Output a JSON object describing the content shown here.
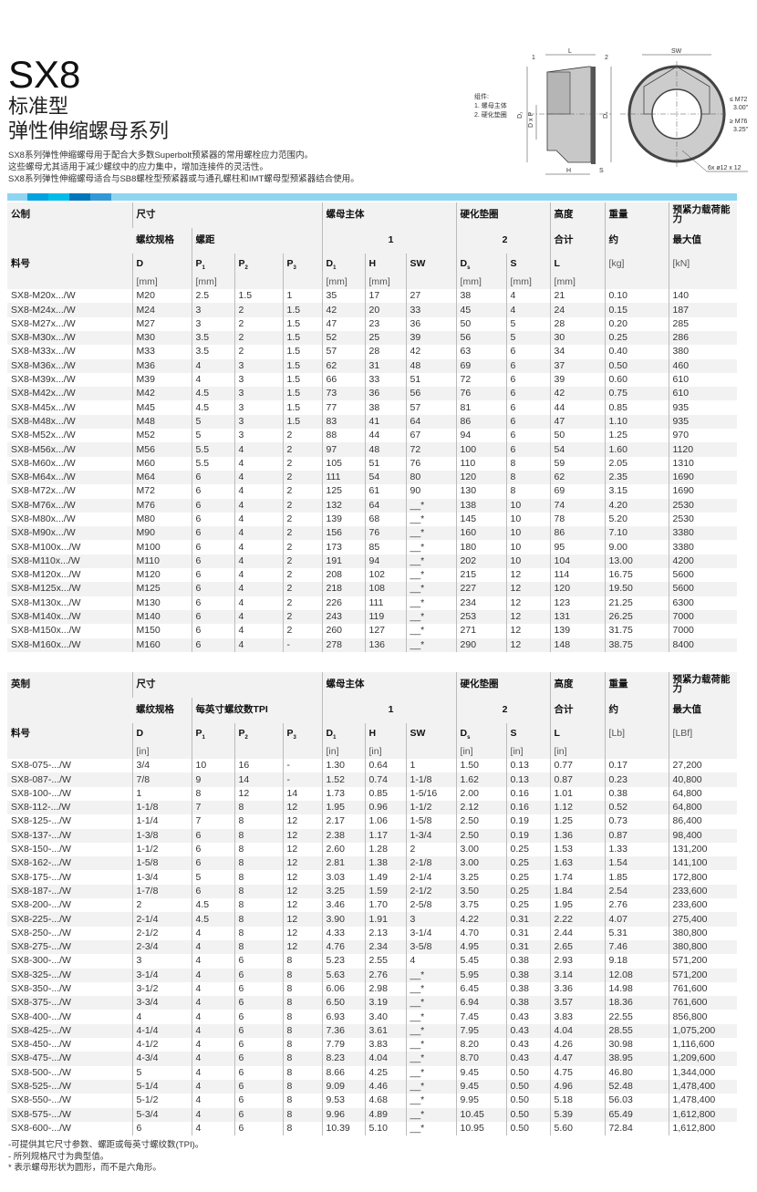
{
  "header": {
    "title": "SX8",
    "subtitle1": "标准型",
    "subtitle2": "弹性伸缩螺母系列",
    "description": [
      "SX8系列弹性伸缩螺母用于配合大多数Superbolt预紧器的常用螺栓应力范围内。",
      "这些螺母尤其适用于减少螺纹中的应力集中，增加连接件的灵活性。",
      "SX8系列弹性伸缩螺母适合与SB8螺栓型预紧器或与通孔螺柱和IMT螺母型预紧器结合使用。"
    ]
  },
  "accent_colors": {
    "bar": "#8fd5f2",
    "seg1": "#00a3e0",
    "seg2": "#00bde8",
    "seg3": "#0077bb",
    "seg4": "#3399d6"
  },
  "drawing": {
    "legend_title": "组件:",
    "legend_1": "1. 螺母主体",
    "legend_2": "2. 硬化垫圈",
    "callout_1": "1",
    "callout_2": "2",
    "dim_L": "L",
    "dim_H": "H",
    "dim_S": "S",
    "dim_SW": "SW",
    "dim_D1": "D₁",
    "dim_DxP": "D x P",
    "dim_Ds": "Dₛ",
    "note_le": "≤ M72",
    "note_le_in": "3.00\"",
    "note_ge": "≥ M76",
    "note_ge_in": "3.25\"",
    "holes": "6x  ø12 x 12"
  },
  "metric": {
    "groups": {
      "c0": "公制",
      "c1": "尺寸",
      "c2": "螺母主体",
      "c3": "硬化垫圈",
      "c4": "高度",
      "c5": "重量",
      "c6": "预紧力载荷能力"
    },
    "sub": {
      "thread": "螺纹规格",
      "pitch": "螺距",
      "n1": "1",
      "n2": "2",
      "total": "合计",
      "approx": "约",
      "max": "最大值"
    },
    "part_label": "料号",
    "cols": [
      {
        "s": "D",
        "b": "",
        "u": "[mm]"
      },
      {
        "s": "P",
        "b": "1",
        "u": "[mm]"
      },
      {
        "s": "P",
        "b": "2",
        "u": ""
      },
      {
        "s": "P",
        "b": "3",
        "u": ""
      },
      {
        "s": "D",
        "b": "1",
        "u": "[mm]"
      },
      {
        "s": "H",
        "b": "",
        "u": "[mm]"
      },
      {
        "s": "SW",
        "b": "",
        "u": ""
      },
      {
        "s": "D",
        "b": "s",
        "u": "[mm]"
      },
      {
        "s": "S",
        "b": "",
        "u": "[mm]"
      },
      {
        "s": "L",
        "b": "",
        "u": "[mm]"
      },
      {
        "s": "",
        "b": "",
        "u": "[kg]"
      },
      {
        "s": "",
        "b": "",
        "u": "[kN]"
      }
    ],
    "rows": [
      [
        "SX8-M20x.../W",
        "M20",
        "2.5",
        "1.5",
        "1",
        "35",
        "17",
        "27",
        "38",
        "4",
        "21",
        "0.10",
        "140"
      ],
      [
        "SX8-M24x.../W",
        "M24",
        "3",
        "2",
        "1.5",
        "42",
        "20",
        "33",
        "45",
        "4",
        "24",
        "0.15",
        "187"
      ],
      [
        "SX8-M27x.../W",
        "M27",
        "3",
        "2",
        "1.5",
        "47",
        "23",
        "36",
        "50",
        "5",
        "28",
        "0.20",
        "285"
      ],
      [
        "SX8-M30x.../W",
        "M30",
        "3.5",
        "2",
        "1.5",
        "52",
        "25",
        "39",
        "56",
        "5",
        "30",
        "0.25",
        "286"
      ],
      [
        "SX8-M33x.../W",
        "M33",
        "3.5",
        "2",
        "1.5",
        "57",
        "28",
        "42",
        "63",
        "6",
        "34",
        "0.40",
        "380"
      ],
      [
        "SX8-M36x.../W",
        "M36",
        "4",
        "3",
        "1.5",
        "62",
        "31",
        "48",
        "69",
        "6",
        "37",
        "0.50",
        "460"
      ],
      [
        "SX8-M39x.../W",
        "M39",
        "4",
        "3",
        "1.5",
        "66",
        "33",
        "51",
        "72",
        "6",
        "39",
        "0.60",
        "610"
      ],
      [
        "SX8-M42x.../W",
        "M42",
        "4.5",
        "3",
        "1.5",
        "73",
        "36",
        "56",
        "76",
        "6",
        "42",
        "0.75",
        "610"
      ],
      [
        "SX8-M45x.../W",
        "M45",
        "4.5",
        "3",
        "1.5",
        "77",
        "38",
        "57",
        "81",
        "6",
        "44",
        "0.85",
        "935"
      ],
      [
        "SX8-M48x.../W",
        "M48",
        "5",
        "3",
        "1.5",
        "83",
        "41",
        "64",
        "86",
        "6",
        "47",
        "1.10",
        "935"
      ],
      [
        "SX8-M52x.../W",
        "M52",
        "5",
        "3",
        "2",
        "88",
        "44",
        "67",
        "94",
        "6",
        "50",
        "1.25",
        "970"
      ],
      [
        "SX8-M56x.../W",
        "M56",
        "5.5",
        "4",
        "2",
        "97",
        "48",
        "72",
        "100",
        "6",
        "54",
        "1.60",
        "1120"
      ],
      [
        "SX8-M60x.../W",
        "M60",
        "5.5",
        "4",
        "2",
        "105",
        "51",
        "76",
        "110",
        "8",
        "59",
        "2.05",
        "1310"
      ],
      [
        "SX8-M64x.../W",
        "M64",
        "6",
        "4",
        "2",
        "111",
        "54",
        "80",
        "120",
        "8",
        "62",
        "2.35",
        "1690"
      ],
      [
        "SX8-M72x.../W",
        "M72",
        "6",
        "4",
        "2",
        "125",
        "61",
        "90",
        "130",
        "8",
        "69",
        "3.15",
        "1690"
      ],
      [
        "SX8-M76x.../W",
        "M76",
        "6",
        "4",
        "2",
        "132",
        "64",
        "__*",
        "138",
        "10",
        "74",
        "4.20",
        "2530"
      ],
      [
        "SX8-M80x.../W",
        "M80",
        "6",
        "4",
        "2",
        "139",
        "68",
        "__*",
        "145",
        "10",
        "78",
        "5.20",
        "2530"
      ],
      [
        "SX8-M90x.../W",
        "M90",
        "6",
        "4",
        "2",
        "156",
        "76",
        "__*",
        "160",
        "10",
        "86",
        "7.10",
        "3380"
      ],
      [
        "SX8-M100x.../W",
        "M100",
        "6",
        "4",
        "2",
        "173",
        "85",
        "__*",
        "180",
        "10",
        "95",
        "9.00",
        "3380"
      ],
      [
        "SX8-M110x.../W",
        "M110",
        "6",
        "4",
        "2",
        "191",
        "94",
        "__*",
        "202",
        "10",
        "104",
        "13.00",
        "4200"
      ],
      [
        "SX8-M120x.../W",
        "M120",
        "6",
        "4",
        "2",
        "208",
        "102",
        "__*",
        "215",
        "12",
        "114",
        "16.75",
        "5600"
      ],
      [
        "SX8-M125x.../W",
        "M125",
        "6",
        "4",
        "2",
        "218",
        "108",
        "__*",
        "227",
        "12",
        "120",
        "19.50",
        "5600"
      ],
      [
        "SX8-M130x.../W",
        "M130",
        "6",
        "4",
        "2",
        "226",
        "111",
        "__*",
        "234",
        "12",
        "123",
        "21.25",
        "6300"
      ],
      [
        "SX8-M140x.../W",
        "M140",
        "6",
        "4",
        "2",
        "243",
        "119",
        "__*",
        "253",
        "12",
        "131",
        "26.25",
        "7000"
      ],
      [
        "SX8-M150x.../W",
        "M150",
        "6",
        "4",
        "2",
        "260",
        "127",
        "__*",
        "271",
        "12",
        "139",
        "31.75",
        "7000"
      ],
      [
        "SX8-M160x.../W",
        "M160",
        "6",
        "4",
        "-",
        "278",
        "136",
        "__*",
        "290",
        "12",
        "148",
        "38.75",
        "8400"
      ]
    ]
  },
  "imperial": {
    "groups": {
      "c0": "英制",
      "c1": "尺寸",
      "c2": "螺母主体",
      "c3": "硬化垫圈",
      "c4": "高度",
      "c5": "重量",
      "c6": "预紧力载荷能力"
    },
    "sub": {
      "thread": "螺纹规格",
      "pitch": "每英寸螺纹数TPI",
      "n1": "1",
      "n2": "2",
      "total": "合计",
      "approx": "约",
      "max": "最大值"
    },
    "part_label": "料号",
    "cols": [
      {
        "s": "D",
        "b": "",
        "u": "[in]"
      },
      {
        "s": "P",
        "b": "1",
        "u": ""
      },
      {
        "s": "P",
        "b": "2",
        "u": ""
      },
      {
        "s": "P",
        "b": "3",
        "u": ""
      },
      {
        "s": "D",
        "b": "1",
        "u": "[in]"
      },
      {
        "s": "H",
        "b": "",
        "u": "[in]"
      },
      {
        "s": "SW",
        "b": "",
        "u": ""
      },
      {
        "s": "D",
        "b": "s",
        "u": "[in]"
      },
      {
        "s": "S",
        "b": "",
        "u": "[in]"
      },
      {
        "s": "L",
        "b": "",
        "u": "[in]"
      },
      {
        "s": "",
        "b": "",
        "u": "[Lb]"
      },
      {
        "s": "",
        "b": "",
        "u": "[LBf]"
      }
    ],
    "rows": [
      [
        "SX8-075-.../W",
        "3/4",
        "10",
        "16",
        "-",
        "1.30",
        "0.64",
        "1",
        "1.50",
        "0.13",
        "0.77",
        "0.17",
        "27,200"
      ],
      [
        "SX8-087-.../W",
        "7/8",
        "9",
        "14",
        "-",
        "1.52",
        "0.74",
        "1-1/8",
        "1.62",
        "0.13",
        "0.87",
        "0.23",
        "40,800"
      ],
      [
        "SX8-100-.../W",
        "1",
        "8",
        "12",
        "14",
        "1.73",
        "0.85",
        "1-5/16",
        "2.00",
        "0.16",
        "1.01",
        "0.38",
        "64,800"
      ],
      [
        "SX8-112-.../W",
        "1-1/8",
        "7",
        "8",
        "12",
        "1.95",
        "0.96",
        "1-1/2",
        "2.12",
        "0.16",
        "1.12",
        "0.52",
        "64,800"
      ],
      [
        "SX8-125-.../W",
        "1-1/4",
        "7",
        "8",
        "12",
        "2.17",
        "1.06",
        "1-5/8",
        "2.50",
        "0.19",
        "1.25",
        "0.73",
        "86,400"
      ],
      [
        "SX8-137-.../W",
        "1-3/8",
        "6",
        "8",
        "12",
        "2.38",
        "1.17",
        "1-3/4",
        "2.50",
        "0.19",
        "1.36",
        "0.87",
        "98,400"
      ],
      [
        "SX8-150-.../W",
        "1-1/2",
        "6",
        "8",
        "12",
        "2.60",
        "1.28",
        "2",
        "3.00",
        "0.25",
        "1.53",
        "1.33",
        "131,200"
      ],
      [
        "SX8-162-.../W",
        "1-5/8",
        "6",
        "8",
        "12",
        "2.81",
        "1.38",
        "2-1/8",
        "3.00",
        "0.25",
        "1.63",
        "1.54",
        "141,100"
      ],
      [
        "SX8-175-.../W",
        "1-3/4",
        "5",
        "8",
        "12",
        "3.03",
        "1.49",
        "2-1/4",
        "3.25",
        "0.25",
        "1.74",
        "1.85",
        "172,800"
      ],
      [
        "SX8-187-.../W",
        "1-7/8",
        "6",
        "8",
        "12",
        "3.25",
        "1.59",
        "2-1/2",
        "3.50",
        "0.25",
        "1.84",
        "2.54",
        "233,600"
      ],
      [
        "SX8-200-.../W",
        "2",
        "4.5",
        "8",
        "12",
        "3.46",
        "1.70",
        "2-5/8",
        "3.75",
        "0.25",
        "1.95",
        "2.76",
        "233,600"
      ],
      [
        "SX8-225-.../W",
        "2-1/4",
        "4.5",
        "8",
        "12",
        "3.90",
        "1.91",
        "3",
        "4.22",
        "0.31",
        "2.22",
        "4.07",
        "275,400"
      ],
      [
        "SX8-250-.../W",
        "2-1/2",
        "4",
        "8",
        "12",
        "4.33",
        "2.13",
        "3-1/4",
        "4.70",
        "0.31",
        "2.44",
        "5.31",
        "380,800"
      ],
      [
        "SX8-275-.../W",
        "2-3/4",
        "4",
        "8",
        "12",
        "4.76",
        "2.34",
        "3-5/8",
        "4.95",
        "0.31",
        "2.65",
        "7.46",
        "380,800"
      ],
      [
        "SX8-300-.../W",
        "3",
        "4",
        "6",
        "8",
        "5.23",
        "2.55",
        "4",
        "5.45",
        "0.38",
        "2.93",
        "9.18",
        "571,200"
      ],
      [
        "SX8-325-.../W",
        "3-1/4",
        "4",
        "6",
        "8",
        "5.63",
        "2.76",
        "__*",
        "5.95",
        "0.38",
        "3.14",
        "12.08",
        "571,200"
      ],
      [
        "SX8-350-.../W",
        "3-1/2",
        "4",
        "6",
        "8",
        "6.06",
        "2.98",
        "__*",
        "6.45",
        "0.38",
        "3.36",
        "14.98",
        "761,600"
      ],
      [
        "SX8-375-.../W",
        "3-3/4",
        "4",
        "6",
        "8",
        "6.50",
        "3.19",
        "__*",
        "6.94",
        "0.38",
        "3.57",
        "18.36",
        "761,600"
      ],
      [
        "SX8-400-.../W",
        "4",
        "4",
        "6",
        "8",
        "6.93",
        "3.40",
        "__*",
        "7.45",
        "0.43",
        "3.83",
        "22.55",
        "856,800"
      ],
      [
        "SX8-425-.../W",
        "4-1/4",
        "4",
        "6",
        "8",
        "7.36",
        "3.61",
        "__*",
        "7.95",
        "0.43",
        "4.04",
        "28.55",
        "1,075,200"
      ],
      [
        "SX8-450-.../W",
        "4-1/2",
        "4",
        "6",
        "8",
        "7.79",
        "3.83",
        "__*",
        "8.20",
        "0.43",
        "4.26",
        "30.98",
        "1,116,600"
      ],
      [
        "SX8-475-.../W",
        "4-3/4",
        "4",
        "6",
        "8",
        "8.23",
        "4.04",
        "__*",
        "8.70",
        "0.43",
        "4.47",
        "38.95",
        "1,209,600"
      ],
      [
        "SX8-500-.../W",
        "5",
        "4",
        "6",
        "8",
        "8.66",
        "4.25",
        "__*",
        "9.45",
        "0.50",
        "4.75",
        "46.80",
        "1,344,000"
      ],
      [
        "SX8-525-.../W",
        "5-1/4",
        "4",
        "6",
        "8",
        "9.09",
        "4.46",
        "__*",
        "9.45",
        "0.50",
        "4.96",
        "52.48",
        "1,478,400"
      ],
      [
        "SX8-550-.../W",
        "5-1/2",
        "4",
        "6",
        "8",
        "9.53",
        "4.68",
        "__*",
        "9.95",
        "0.50",
        "5.18",
        "56.03",
        "1,478,400"
      ],
      [
        "SX8-575-.../W",
        "5-3/4",
        "4",
        "6",
        "8",
        "9.96",
        "4.89",
        "__*",
        "10.45",
        "0.50",
        "5.39",
        "65.49",
        "1,612,800"
      ],
      [
        "SX8-600-.../W",
        "6",
        "4",
        "6",
        "8",
        "10.39",
        "5.10",
        "__*",
        "10.95",
        "0.50",
        "5.60",
        "72.84",
        "1,612,800"
      ]
    ]
  },
  "notes": [
    "-可提供其它尺寸参数、螺距或每英寸螺纹数(TPI)。",
    "- 所列规格尺寸为典型值。",
    "* 表示螺母形状为圆形，而不是六角形。"
  ]
}
